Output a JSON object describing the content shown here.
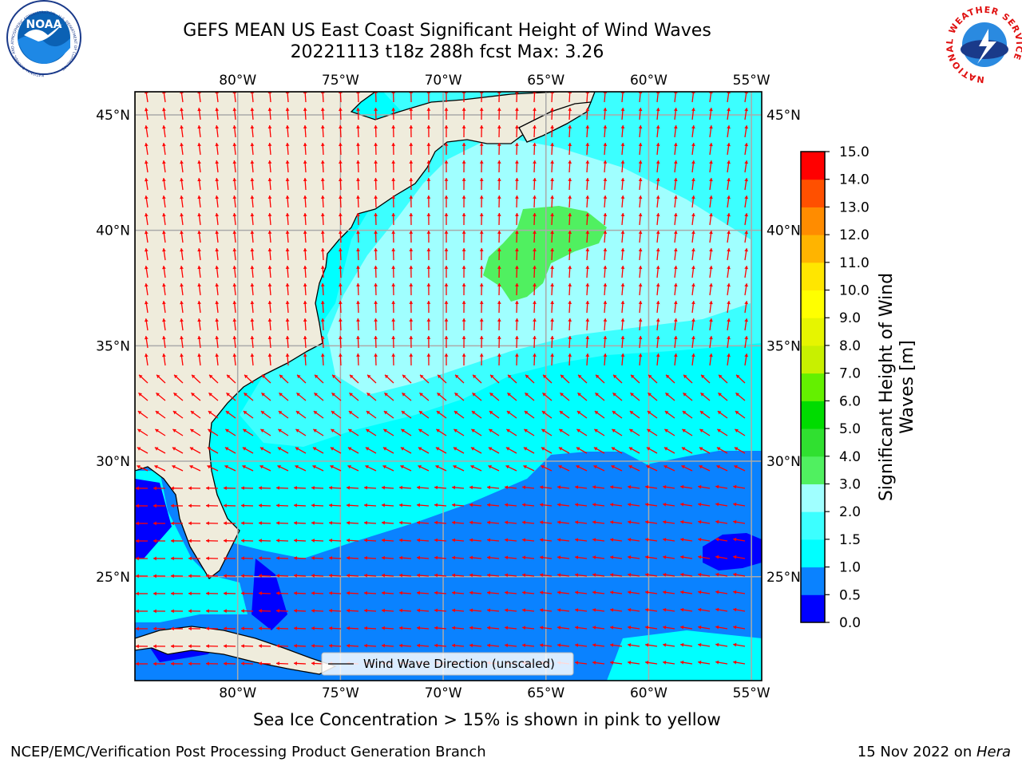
{
  "header": {
    "title_line1": "GEFS MEAN US East Coast Significant Height of Wind Waves",
    "title_line2": "20221113 t18z 288h fcst   Max: 3.26"
  },
  "logos": {
    "noaa_text": "NOAA",
    "noaa_ring_text": "NATIONAL OCEANIC AND ATMOSPHERIC ADMINISTRATION · U.S. DEPARTMENT OF COMMERCE",
    "nws_ring_text": "NATIONAL WEATHER SERVICE"
  },
  "map": {
    "lon_ticks": [
      "80°W",
      "75°W",
      "70°W",
      "65°W",
      "60°W",
      "55°W"
    ],
    "lat_ticks": [
      "45°N",
      "40°N",
      "35°N",
      "30°N",
      "25°N"
    ],
    "extent": {
      "lon": [
        -85,
        -54.5
      ],
      "lat": [
        20.5,
        46
      ]
    },
    "grid": true,
    "land_color": "#efecdc",
    "arrow_color": "#ff0000",
    "legend_text": "Wind Wave Direction (unscaled)"
  },
  "colorbar": {
    "label": "Significant Height of Wind Waves [m]",
    "ticks": [
      "0.0",
      "0.5",
      "1.0",
      "1.5",
      "2.0",
      "3.0",
      "4.0",
      "5.0",
      "6.0",
      "7.0",
      "8.0",
      "9.0",
      "10.0",
      "11.0",
      "12.0",
      "13.0",
      "14.0",
      "15.0"
    ],
    "colors": [
      "#0000ff",
      "#0a82ff",
      "#00ffff",
      "#3cffff",
      "#a0ffff",
      "#50f060",
      "#30e030",
      "#00dc00",
      "#64f000",
      "#c8f000",
      "#e6f500",
      "#ffff00",
      "#ffe600",
      "#ffb400",
      "#ff8c00",
      "#ff5000",
      "#ff0000"
    ]
  },
  "chart_data": {
    "type": "heatmap",
    "title": "GEFS MEAN US East Coast Significant Height of Wind Waves",
    "subtitle": "20221113 t18z 288h fcst   Max: 3.26",
    "variable": "Significant Height of Wind Waves [m]",
    "max_value": 3.26,
    "levels": [
      0,
      0.5,
      1,
      1.5,
      2,
      3,
      4,
      5,
      6,
      7,
      8,
      9,
      10,
      11,
      12,
      13,
      14,
      15
    ],
    "lon_range": [
      -85,
      -54.5
    ],
    "lat_range": [
      20.5,
      46
    ]
  },
  "footer": {
    "ice_note": "Sea Ice Concentration > 15% is shown in pink to yellow",
    "producer": "NCEP/EMC/Verification Post Processing Product Generation Branch",
    "date_prefix": "15 Nov 2022 on ",
    "machine": "Hera"
  }
}
